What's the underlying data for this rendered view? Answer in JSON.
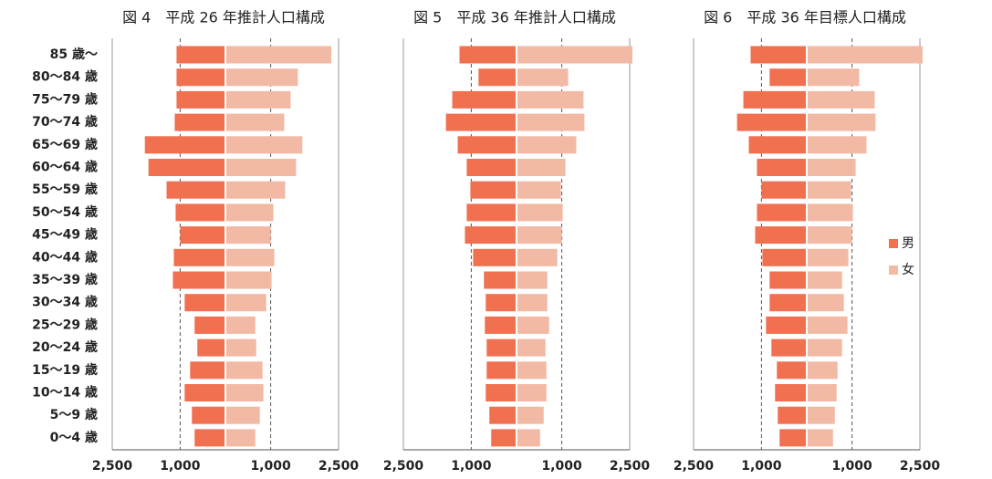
{
  "chart_data": [
    {
      "type": "pyramid",
      "title": "図 4　平成 26 年推計人口構成",
      "categories": [
        "85 歳〜",
        "80〜84 歳",
        "75〜79 歳",
        "70〜74 歳",
        "65〜69 歳",
        "60〜64 歳",
        "55〜59 歳",
        "50〜54 歳",
        "45〜49 歳",
        "40〜44 歳",
        "35〜39 歳",
        "30〜34 歳",
        "25〜29 歳",
        "20〜24 歳",
        "15〜19 歳",
        "10〜14 歳",
        "5〜9 歳",
        "0〜4 歳"
      ],
      "series": [
        {
          "name": "男",
          "color": "#f07050",
          "values": [
            1080,
            1080,
            1080,
            1120,
            1780,
            1700,
            1300,
            1100,
            1000,
            1140,
            1160,
            900,
            680,
            620,
            780,
            900,
            740,
            680
          ]
        },
        {
          "name": "女",
          "color": "#f2b9a5",
          "values": [
            2340,
            1600,
            1440,
            1300,
            1700,
            1560,
            1320,
            1060,
            1000,
            1080,
            1020,
            900,
            660,
            680,
            820,
            840,
            760,
            660
          ]
        }
      ],
      "xlim": [
        -2500,
        2500
      ],
      "xticks": [
        {
          "value": -2500,
          "label": "2,500"
        },
        {
          "value": -1000,
          "label": "1,000"
        },
        {
          "value": 1000,
          "label": "1,000"
        },
        {
          "value": 2500,
          "label": "2,500"
        }
      ]
    },
    {
      "type": "pyramid",
      "title": "図 5　平成 36 年推計人口構成",
      "series": [
        {
          "name": "男",
          "color": "#f07050",
          "values": [
            1260,
            840,
            1420,
            1560,
            1300,
            1100,
            1020,
            1100,
            1140,
            960,
            720,
            680,
            700,
            660,
            660,
            680,
            600,
            560
          ]
        },
        {
          "name": "女",
          "color": "#f2b9a5",
          "values": [
            2560,
            1140,
            1480,
            1500,
            1320,
            1080,
            980,
            1020,
            1000,
            900,
            680,
            680,
            720,
            640,
            660,
            660,
            600,
            520
          ]
        }
      ],
      "xlim": [
        -2500,
        2500
      ],
      "xticks": [
        {
          "value": -2500,
          "label": "2,500"
        },
        {
          "value": -1000,
          "label": "1,000"
        },
        {
          "value": 1000,
          "label": "1,000"
        },
        {
          "value": 2500,
          "label": "2,500"
        }
      ]
    },
    {
      "type": "pyramid",
      "title": "図 6　平成 36 年目標人口構成",
      "series": [
        {
          "name": "男",
          "color": "#f07050",
          "values": [
            1240,
            820,
            1400,
            1540,
            1280,
            1100,
            1000,
            1100,
            1140,
            980,
            820,
            820,
            900,
            780,
            660,
            700,
            640,
            600
          ]
        },
        {
          "name": "女",
          "color": "#f2b9a5",
          "values": [
            2560,
            1160,
            1500,
            1520,
            1320,
            1080,
            980,
            1020,
            1000,
            920,
            780,
            820,
            900,
            780,
            680,
            660,
            620,
            580
          ]
        }
      ],
      "xlim": [
        -2500,
        2500
      ],
      "xticks": [
        {
          "value": -2500,
          "label": "2,500"
        },
        {
          "value": -1000,
          "label": "1,000"
        },
        {
          "value": 1000,
          "label": "1,000"
        },
        {
          "value": 2500,
          "label": "2,500"
        }
      ]
    }
  ]
}
